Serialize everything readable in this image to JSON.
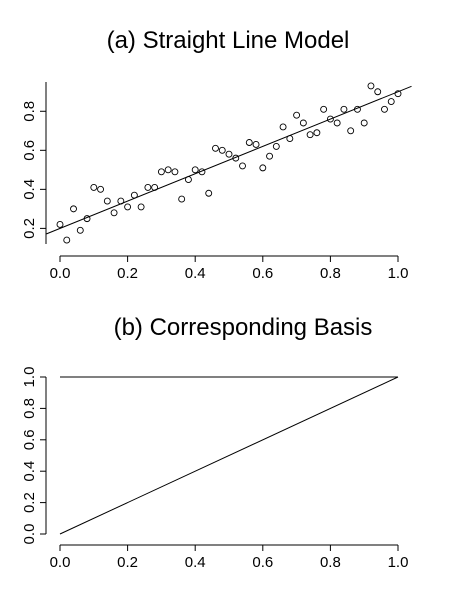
{
  "chart_data": [
    {
      "type": "scatter",
      "title": "(a) Straight Line Model",
      "xlabel": "",
      "ylabel": "",
      "xlim": [
        0.0,
        1.0
      ],
      "ylim": [
        0.12,
        0.95
      ],
      "x_ticks": [
        "0.0",
        "0.2",
        "0.4",
        "0.6",
        "0.8",
        "1.0"
      ],
      "y_ticks": [
        "0.2",
        "0.4",
        "0.6",
        "0.8"
      ],
      "grid": false,
      "series": [
        {
          "points": [
            [
              0.0,
              0.22
            ],
            [
              0.02,
              0.14
            ],
            [
              0.04,
              0.3
            ],
            [
              0.06,
              0.19
            ],
            [
              0.08,
              0.25
            ],
            [
              0.1,
              0.41
            ],
            [
              0.12,
              0.4
            ],
            [
              0.14,
              0.34
            ],
            [
              0.16,
              0.28
            ],
            [
              0.18,
              0.34
            ],
            [
              0.2,
              0.31
            ],
            [
              0.22,
              0.37
            ],
            [
              0.24,
              0.31
            ],
            [
              0.26,
              0.41
            ],
            [
              0.28,
              0.41
            ],
            [
              0.3,
              0.49
            ],
            [
              0.32,
              0.5
            ],
            [
              0.34,
              0.49
            ],
            [
              0.36,
              0.35
            ],
            [
              0.38,
              0.45
            ],
            [
              0.4,
              0.5
            ],
            [
              0.42,
              0.49
            ],
            [
              0.44,
              0.38
            ],
            [
              0.46,
              0.61
            ],
            [
              0.48,
              0.6
            ],
            [
              0.5,
              0.58
            ],
            [
              0.52,
              0.56
            ],
            [
              0.54,
              0.52
            ],
            [
              0.56,
              0.64
            ],
            [
              0.58,
              0.63
            ],
            [
              0.6,
              0.51
            ],
            [
              0.62,
              0.57
            ],
            [
              0.64,
              0.62
            ],
            [
              0.66,
              0.72
            ],
            [
              0.68,
              0.66
            ],
            [
              0.7,
              0.78
            ],
            [
              0.72,
              0.74
            ],
            [
              0.74,
              0.68
            ],
            [
              0.76,
              0.69
            ],
            [
              0.78,
              0.81
            ],
            [
              0.8,
              0.76
            ],
            [
              0.82,
              0.74
            ],
            [
              0.84,
              0.81
            ],
            [
              0.86,
              0.7
            ],
            [
              0.88,
              0.81
            ],
            [
              0.9,
              0.74
            ],
            [
              0.92,
              0.93
            ],
            [
              0.94,
              0.9
            ],
            [
              0.96,
              0.81
            ],
            [
              0.98,
              0.85
            ],
            [
              1.0,
              0.89
            ]
          ]
        }
      ],
      "fit_line": {
        "intercept": 0.2,
        "slope": 0.7
      }
    },
    {
      "type": "line",
      "title": "(b) Corresponding Basis",
      "xlabel": "",
      "ylabel": "",
      "xlim": [
        0.0,
        1.0
      ],
      "ylim": [
        0.0,
        1.0
      ],
      "x_ticks": [
        "0.0",
        "0.2",
        "0.4",
        "0.6",
        "0.8",
        "1.0"
      ],
      "y_ticks": [
        "0.0",
        "0.2",
        "0.4",
        "0.6",
        "0.8",
        "1.0"
      ],
      "grid": false,
      "series": [
        {
          "x": [
            0.0,
            1.0
          ],
          "values": [
            1.0,
            1.0
          ]
        },
        {
          "x": [
            0.0,
            1.0
          ],
          "values": [
            0.0,
            1.0
          ]
        }
      ]
    }
  ]
}
